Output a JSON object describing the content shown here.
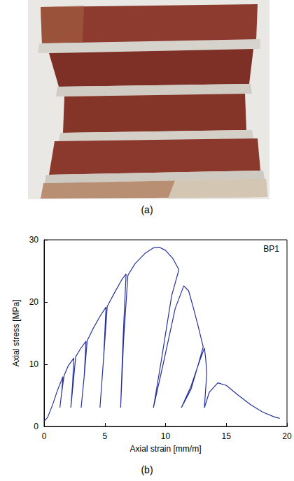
{
  "figure": {
    "panel_a": {
      "caption": "(a)"
    },
    "panel_b": {
      "caption": "(b)"
    }
  },
  "chart_data": {
    "type": "line",
    "annotation": "BP1",
    "x_label": "Axial strain [mm/m]",
    "y_label": "Axial stress [MPa]",
    "color": "#27329a",
    "xlim": [
      0,
      20
    ],
    "xticks": [
      0,
      5,
      10,
      15,
      20
    ],
    "ylim": [
      0,
      30
    ],
    "yticks": [
      0,
      10,
      20,
      30
    ],
    "grid": false,
    "x": [
      0,
      0.3,
      0.7,
      1.1,
      1.55,
      1.45,
      1.3,
      1.45,
      1.65,
      2.0,
      2.45,
      2.35,
      2.2,
      2.4,
      2.6,
      3.0,
      3.45,
      3.3,
      3.05,
      3.3,
      3.55,
      4.0,
      4.6,
      5.1,
      4.9,
      4.6,
      4.9,
      5.2,
      5.8,
      6.4,
      6.75,
      6.5,
      6.3,
      6.55,
      6.9,
      7.5,
      8.3,
      9.0,
      9.5,
      10.0,
      10.6,
      11.1,
      10.5,
      9.6,
      9.0,
      9.8,
      10.8,
      11.5,
      11.9,
      12.3,
      12.7,
      13.1,
      12.7,
      12.1,
      11.3,
      12.1,
      12.8,
      13.2,
      13.3,
      13.4,
      13.3,
      13.2,
      13.6,
      14.3,
      15.0,
      16.0,
      17.0,
      18.0,
      19.0,
      19.4
    ],
    "values": [
      0.8,
      1.5,
      3.5,
      5.8,
      8.0,
      5.5,
      3.0,
      5.5,
      8.2,
      9.8,
      11.0,
      7.0,
      3.0,
      7.0,
      11.2,
      12.5,
      13.7,
      8.0,
      3.0,
      8.0,
      13.8,
      15.6,
      17.7,
      19.2,
      11.0,
      3.0,
      11.0,
      19.3,
      21.5,
      23.6,
      24.5,
      14.0,
      3.0,
      14.0,
      24.3,
      26.2,
      27.8,
      28.7,
      28.8,
      28.3,
      27.0,
      25.2,
      21.0,
      10.0,
      3.0,
      10.0,
      19.0,
      22.6,
      21.8,
      19.0,
      16.0,
      12.8,
      10.0,
      6.0,
      3.0,
      6.5,
      10.5,
      12.6,
      11.0,
      8.5,
      6.0,
      3.0,
      5.5,
      7.0,
      6.6,
      5.0,
      3.5,
      2.3,
      1.5,
      1.3
    ]
  }
}
